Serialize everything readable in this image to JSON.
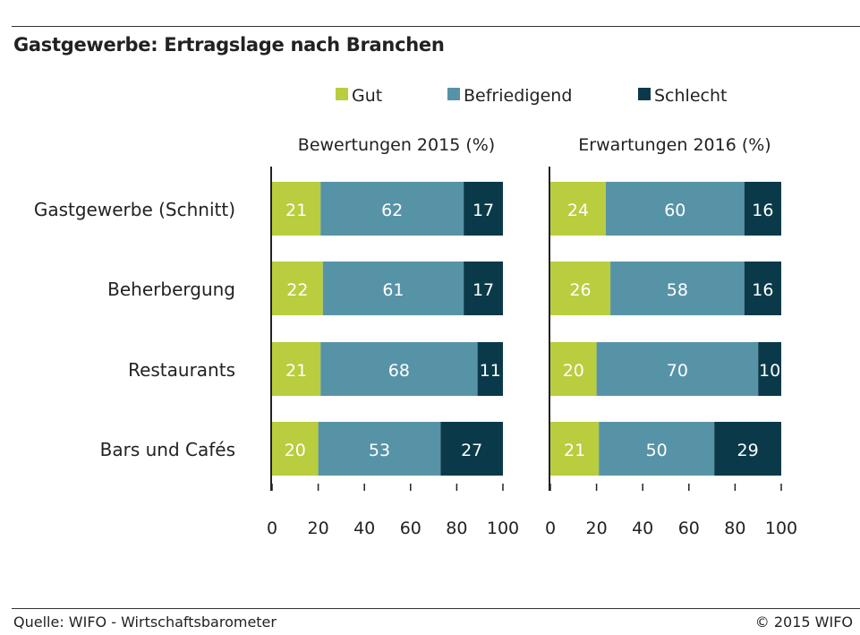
{
  "title": "Gastgewerbe: Ertragslage nach Branchen",
  "source": "Quelle: WIFO - Wirtschaftsbarometer",
  "copyright": "© 2015 WIFO",
  "colors": {
    "gut": "#b9cd3e",
    "befriedigend": "#5793a7",
    "schlecht": "#0a3a4a"
  },
  "chart_data": {
    "type": "bar",
    "stacked": true,
    "orientation": "horizontal",
    "categories": [
      "Gastgewerbe (Schnitt)",
      "Beherbergung",
      "Restaurants",
      "Bars und Cafés"
    ],
    "legend": [
      "Gut",
      "Befriedigend",
      "Schlecht"
    ],
    "legend_position": "top",
    "xlim": [
      0,
      100
    ],
    "xticks": [
      "0",
      "20",
      "40",
      "60",
      "80",
      "100"
    ],
    "panels": [
      {
        "title": "Bewertungen 2015 (%)",
        "series": [
          {
            "name": "Gut",
            "values": [
              21,
              22,
              21,
              20
            ]
          },
          {
            "name": "Befriedigend",
            "values": [
              62,
              61,
              68,
              53
            ]
          },
          {
            "name": "Schlecht",
            "values": [
              17,
              17,
              11,
              27
            ]
          }
        ]
      },
      {
        "title": "Erwartungen 2016 (%)",
        "series": [
          {
            "name": "Gut",
            "values": [
              24,
              26,
              20,
              21
            ]
          },
          {
            "name": "Befriedigend",
            "values": [
              60,
              58,
              70,
              50
            ]
          },
          {
            "name": "Schlecht",
            "values": [
              16,
              16,
              10,
              29
            ]
          }
        ]
      }
    ]
  }
}
